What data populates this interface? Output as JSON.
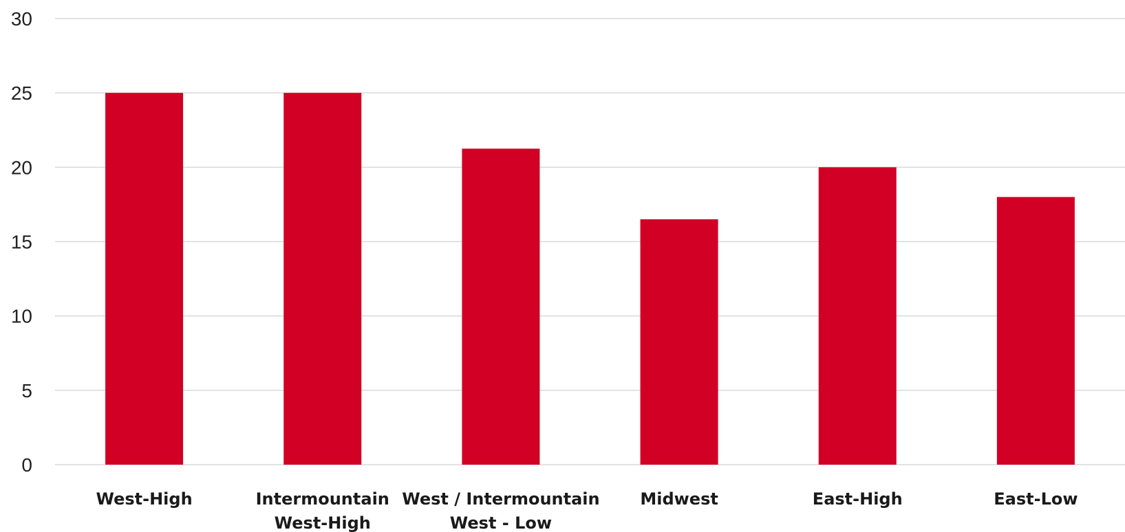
{
  "chart_data": {
    "type": "bar",
    "categories": [
      [
        "West-High"
      ],
      [
        "Intermountain",
        "West-High"
      ],
      [
        "West / Intermountain",
        "West - Low"
      ],
      [
        "Midwest"
      ],
      [
        "East-High"
      ],
      [
        "East-Low"
      ]
    ],
    "values": [
      25,
      25,
      21.25,
      16.5,
      20,
      18
    ],
    "ylim": [
      0,
      30
    ],
    "yticks": [
      0,
      5,
      10,
      15,
      20,
      25,
      30
    ],
    "grid": true,
    "bar_color": "#D10024",
    "grid_color": "#D9D9D9"
  }
}
